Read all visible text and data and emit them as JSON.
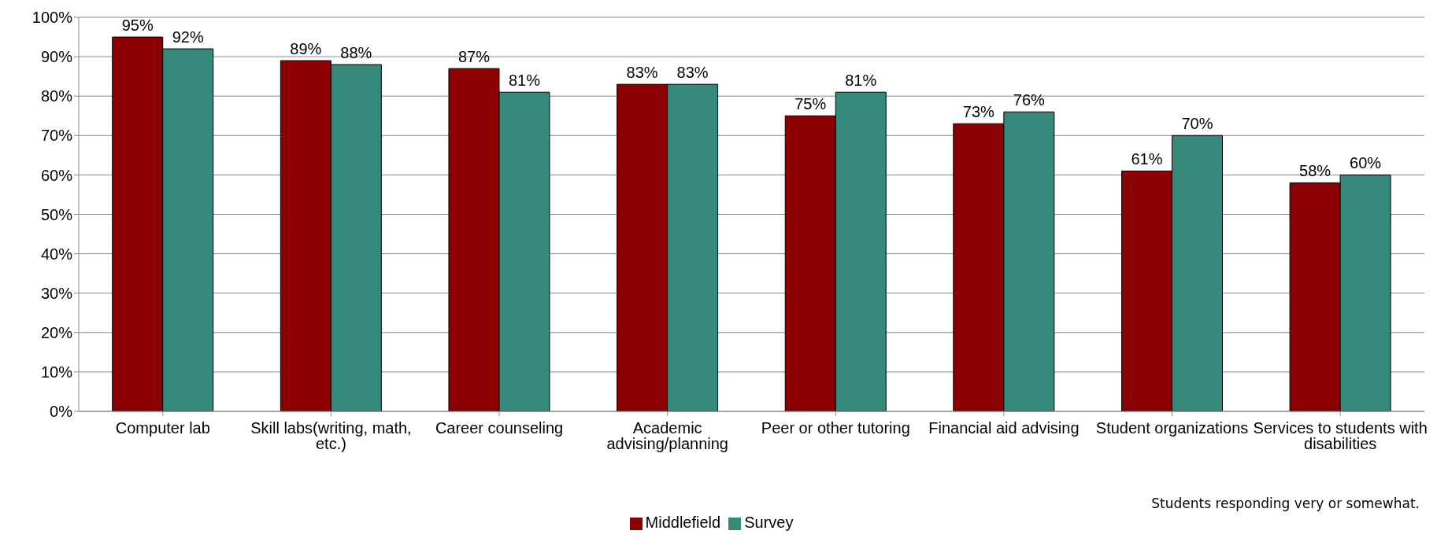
{
  "chart_data": {
    "type": "bar",
    "categories": [
      "Computer lab",
      "Skill labs(writing, math, etc.)",
      "Career counseling",
      "Academic advising/planning",
      "Peer or other tutoring",
      "Financial aid advising",
      "Student organizations",
      "Services to students with disabilities"
    ],
    "series": [
      {
        "name": "Middlefield",
        "color": "#8b0000",
        "values": [
          95,
          89,
          87,
          83,
          75,
          73,
          61,
          58
        ],
        "value_labels": [
          "95%",
          "89%",
          "87%",
          "83%",
          "75%",
          "73%",
          "61%",
          "58%"
        ]
      },
      {
        "name": "Survey",
        "color": "#358a7c",
        "values": [
          92,
          88,
          81,
          83,
          81,
          76,
          70,
          60
        ],
        "value_labels": [
          "92%",
          "88%",
          "81%",
          "83%",
          "81%",
          "76%",
          "70%",
          "60%"
        ]
      }
    ],
    "ylim": [
      0,
      100
    ],
    "yticks": [
      {
        "value": 0,
        "label": "0%"
      },
      {
        "value": 10,
        "label": "10%"
      },
      {
        "value": 20,
        "label": "20%"
      },
      {
        "value": 30,
        "label": "30%"
      },
      {
        "value": 40,
        "label": "40%"
      },
      {
        "value": 50,
        "label": "50%"
      },
      {
        "value": 60,
        "label": "60%"
      },
      {
        "value": 70,
        "label": "70%"
      },
      {
        "value": 80,
        "label": "80%"
      },
      {
        "value": 90,
        "label": "90%"
      },
      {
        "value": 100,
        "label": "100%"
      }
    ],
    "grid": "y",
    "legend": "bottom",
    "annotations": [
      "Students responding very or somewhat."
    ]
  }
}
